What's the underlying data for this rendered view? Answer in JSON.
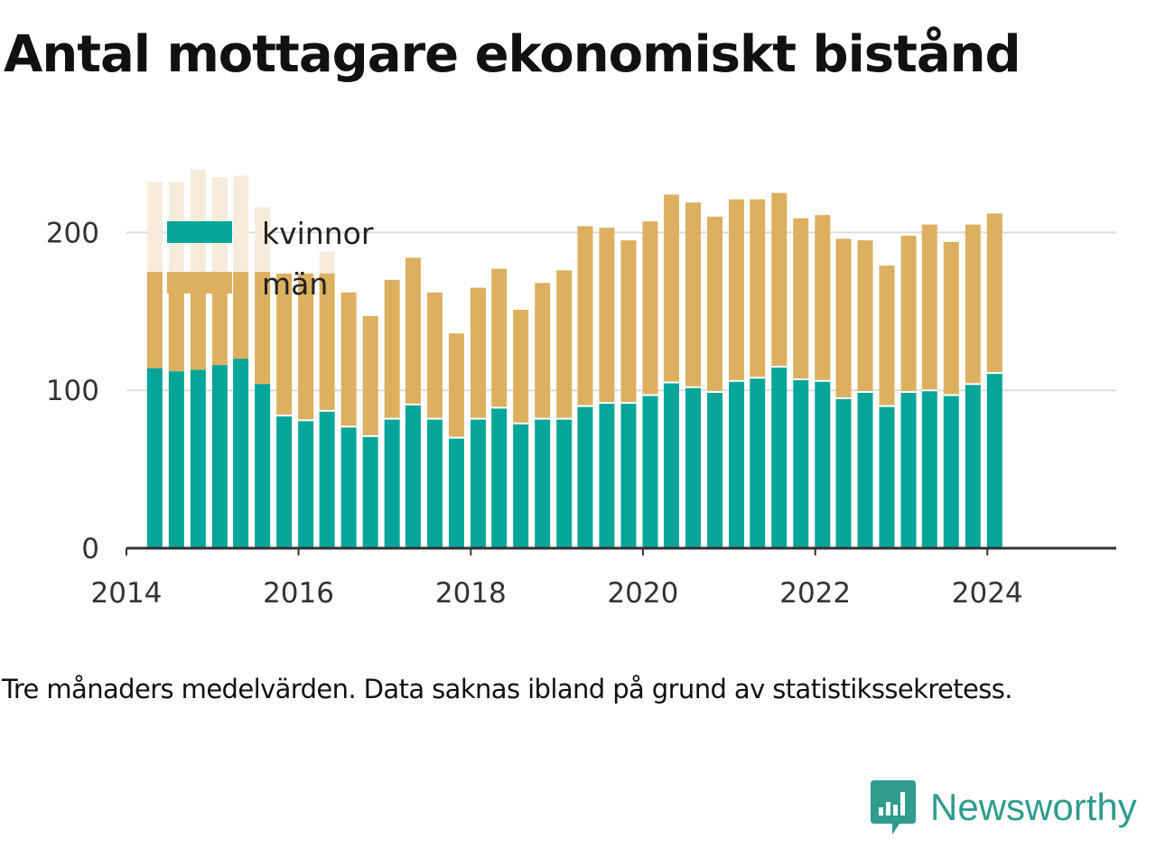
{
  "title": "Antal mottagare ekonomiskt bistånd",
  "footnote": "Tre månaders medelvärden. Data saknas ibland på grund av statistikssekretess.",
  "brand": "Newsworthy",
  "colors": {
    "kvinnor": "#06a59a",
    "man": "#dcb05e",
    "faded": "#f7ecdb",
    "grid": "#dddddd",
    "axis": "#333333"
  },
  "chart_data": {
    "type": "bar",
    "stacked": true,
    "x": [
      "2014-05",
      "2014-08",
      "2014-11",
      "2015-02",
      "2015-05",
      "2015-08",
      "2015-11",
      "2016-02",
      "2016-05",
      "2016-08",
      "2016-11",
      "2017-02",
      "2017-05",
      "2017-08",
      "2017-11",
      "2018-02",
      "2018-05",
      "2018-08",
      "2018-11",
      "2019-02",
      "2019-05",
      "2019-08",
      "2019-11",
      "2020-02",
      "2020-05",
      "2020-08",
      "2020-11",
      "2021-02",
      "2021-05",
      "2021-08",
      "2021-11",
      "2022-02",
      "2022-05",
      "2022-08",
      "2022-11",
      "2023-02",
      "2023-05",
      "2023-08",
      "2023-11",
      "2024-02"
    ],
    "series": [
      {
        "name": "kvinnor",
        "values": [
          114,
          112,
          113,
          116,
          120,
          104,
          84,
          81,
          87,
          77,
          71,
          82,
          91,
          82,
          70,
          82,
          89,
          79,
          82,
          82,
          90,
          92,
          92,
          97,
          105,
          102,
          99,
          106,
          108,
          115,
          107,
          106,
          95,
          99,
          90,
          99,
          100,
          97,
          104,
          111
        ]
      },
      {
        "name": "män",
        "values": [
          null,
          null,
          null,
          null,
          null,
          null,
          90,
          93,
          87,
          85,
          76,
          88,
          93,
          80,
          66,
          83,
          88,
          72,
          86,
          94,
          114,
          111,
          103,
          110,
          119,
          117,
          111,
          115,
          113,
          110,
          102,
          105,
          101,
          96,
          89,
          99,
          105,
          97,
          101,
          101
        ]
      }
    ],
    "faded_totals": [
      232,
      232,
      240,
      235,
      236,
      216,
      null,
      null,
      188,
      null,
      null,
      null,
      null,
      null,
      null,
      null,
      null,
      null,
      null,
      null,
      null,
      null,
      null,
      null,
      null,
      null,
      null,
      null,
      null,
      null,
      null,
      null,
      null,
      null,
      null,
      null,
      null,
      null,
      null,
      null
    ],
    "xticks": [
      "2014",
      "2016",
      "2018",
      "2020",
      "2022",
      "2024"
    ],
    "yticks": [
      "0",
      "100",
      "200"
    ],
    "ylim": [
      0,
      250
    ],
    "xlim": [
      "2014-01-01",
      "2025-07-01"
    ],
    "legend": [
      "kvinnor",
      "män"
    ],
    "legend_position": "top-left",
    "grid": "horizontal"
  }
}
